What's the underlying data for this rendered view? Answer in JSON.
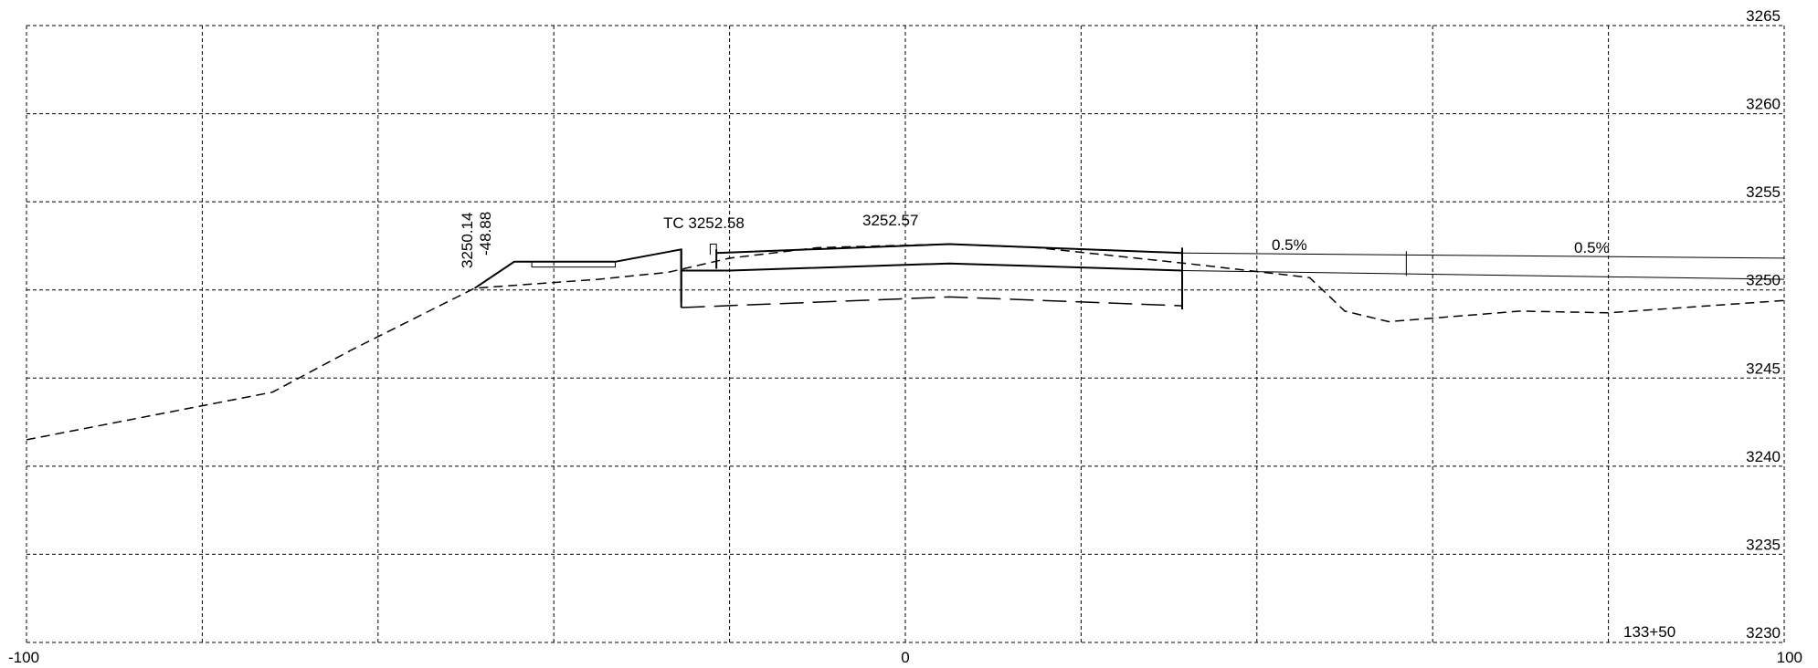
{
  "chart_data": {
    "type": "cross-section",
    "xlim": [
      -100,
      100
    ],
    "ylim": [
      3230,
      3265
    ],
    "x_ticks": [
      -100,
      0,
      100
    ],
    "x_tick_labels": [
      "-100",
      "0",
      "100"
    ],
    "y_ticks": [
      3230,
      3235,
      3240,
      3245,
      3250,
      3255,
      3260,
      3265
    ],
    "y_tick_labels": [
      "3230",
      "3235",
      "3240",
      "3245",
      "3250",
      "3255",
      "3260",
      "3265"
    ],
    "grid": true,
    "station_label": "133+50",
    "annotations": {
      "catch_elev": "3250.14",
      "catch_offset": "-48.88",
      "tc_label": "TC 3252.58",
      "cl_elev": "3252.57",
      "slope_1": "0.5%",
      "slope_2": "0.5%"
    },
    "existing_ground": [
      [
        -100,
        3241.5
      ],
      [
        -72,
        3244.2
      ],
      [
        -63,
        3246.6
      ],
      [
        -49,
        3250.1
      ],
      [
        -35,
        3250.6
      ],
      [
        -27,
        3251.0
      ],
      [
        -20,
        3251.8
      ],
      [
        -10,
        3252.4
      ],
      [
        5,
        3252.6
      ],
      [
        15,
        3252.4
      ],
      [
        32,
        3251.5
      ],
      [
        46,
        3250.7
      ],
      [
        50,
        3248.8
      ],
      [
        55,
        3248.2
      ],
      [
        70,
        3248.8
      ],
      [
        80,
        3248.7
      ],
      [
        100,
        3249.4
      ]
    ],
    "design_left_slope": [
      [
        -49,
        3250.1
      ],
      [
        -44.5,
        3251.6
      ],
      [
        -33,
        3251.6
      ],
      [
        -25.5,
        3252.3
      ],
      [
        -25.5,
        3249.3
      ]
    ],
    "ditch_box": [
      [
        -42.5,
        3251.6
      ],
      [
        -33,
        3251.6
      ],
      [
        -33,
        3251.3
      ],
      [
        -42.5,
        3251.3
      ]
    ],
    "top_surface": [
      [
        -21.5,
        3252.1
      ],
      [
        5,
        3252.6
      ],
      [
        31.5,
        3252.1
      ]
    ],
    "curb": [
      [
        -22.2,
        3252.0
      ],
      [
        -22.2,
        3252.6
      ],
      [
        -21.5,
        3252.6
      ],
      [
        -21.5,
        3252.1
      ]
    ],
    "base_bottom": [
      [
        -25.5,
        3251.1
      ],
      [
        -20,
        3251.1
      ],
      [
        5,
        3251.5
      ],
      [
        31.5,
        3251.1
      ]
    ],
    "shoulder_top": [
      [
        31.5,
        3252.1
      ],
      [
        100,
        3251.8
      ]
    ],
    "shoulder_bottom": [
      [
        31.5,
        3251.1
      ],
      [
        100,
        3250.6
      ]
    ],
    "subgrade_bottom": [
      [
        -25.5,
        3249.0
      ],
      [
        5,
        3249.6
      ],
      [
        31.5,
        3249.1
      ]
    ]
  }
}
